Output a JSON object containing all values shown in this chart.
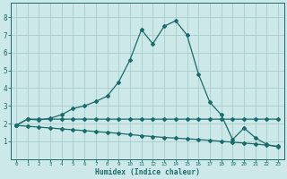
{
  "xlabel": "Humidex (Indice chaleur)",
  "background_color": "#cce8e8",
  "grid_color": "#aacccc",
  "line_color": "#1a6b6b",
  "xlim": [
    -0.5,
    23.5
  ],
  "ylim": [
    0,
    8.8
  ],
  "xticks": [
    0,
    1,
    2,
    3,
    4,
    5,
    6,
    7,
    8,
    9,
    10,
    11,
    12,
    13,
    14,
    15,
    16,
    17,
    18,
    19,
    20,
    21,
    22,
    23
  ],
  "yticks": [
    1,
    2,
    3,
    4,
    5,
    6,
    7,
    8
  ],
  "line1_x": [
    0,
    1,
    2,
    3,
    4,
    5,
    6,
    7,
    8,
    9,
    10,
    11,
    12,
    13,
    14,
    15,
    16,
    17,
    18,
    19,
    20,
    21,
    22,
    23
  ],
  "line1_y": [
    1.9,
    2.25,
    2.25,
    2.25,
    2.25,
    2.25,
    2.25,
    2.25,
    2.25,
    2.25,
    2.25,
    2.25,
    2.25,
    2.25,
    2.25,
    2.25,
    2.25,
    2.25,
    2.25,
    2.25,
    2.25,
    2.25,
    2.25,
    2.25
  ],
  "line2_x": [
    0,
    1,
    2,
    3,
    4,
    5,
    6,
    7,
    8,
    9,
    10,
    11,
    12,
    13,
    14,
    15,
    16,
    17,
    18,
    19,
    20,
    21,
    22,
    23
  ],
  "line2_y": [
    1.9,
    1.85,
    1.8,
    1.75,
    1.7,
    1.65,
    1.6,
    1.55,
    1.5,
    1.45,
    1.38,
    1.32,
    1.27,
    1.22,
    1.18,
    1.14,
    1.1,
    1.05,
    1.0,
    0.95,
    0.9,
    0.85,
    0.78,
    0.72
  ],
  "line3_x": [
    0,
    1,
    2,
    3,
    4,
    5,
    6,
    7,
    8,
    9,
    10,
    11,
    12,
    13,
    14,
    15,
    16,
    17,
    18,
    19,
    20,
    21,
    22,
    23
  ],
  "line3_y": [
    1.9,
    2.25,
    2.2,
    2.3,
    2.5,
    2.85,
    3.0,
    3.25,
    3.55,
    4.35,
    5.6,
    7.3,
    6.5,
    7.5,
    7.8,
    7.0,
    4.8,
    3.2,
    2.5,
    1.1,
    1.75,
    1.2,
    0.82,
    0.68
  ]
}
